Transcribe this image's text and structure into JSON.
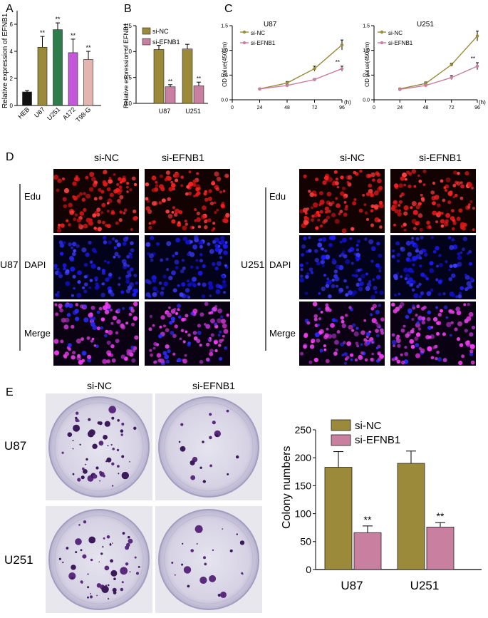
{
  "panel_letters": {
    "a": "A",
    "b": "B",
    "c": "C",
    "d": "D",
    "e": "E"
  },
  "colors": {
    "hebBlack": "#111111",
    "olive": "#9a8a3a",
    "green": "#2e7d4a",
    "magenta": "#c357d8",
    "pinkBeige": "#e3b4b0",
    "siNC": "#9a8a3a",
    "siEFNB1": "#c97fa0",
    "dish": "#c9c6d8"
  },
  "chart_data": [
    {
      "id": "A",
      "type": "bar",
      "title": "",
      "ylabel": "Relative expression of EFNB1",
      "categories": [
        "HEB",
        "U87",
        "U251",
        "A172",
        "T98-G"
      ],
      "values": [
        1.0,
        4.3,
        5.6,
        3.9,
        3.4
      ],
      "errors": [
        0.1,
        0.8,
        0.5,
        1.0,
        0.6
      ],
      "annotations": [
        "",
        "**",
        "**",
        "**",
        "**"
      ],
      "ylim": [
        0,
        7
      ],
      "yticks": [
        0,
        2,
        4,
        6
      ]
    },
    {
      "id": "B",
      "type": "bar",
      "ylabel": "Relative expression of EFNB1",
      "categories": [
        "U87",
        "U251"
      ],
      "series": [
        {
          "name": "si-NC",
          "values": [
            1.04,
            1.05
          ],
          "errors": [
            0.08,
            0.09
          ]
        },
        {
          "name": "si-EFNB1",
          "values": [
            0.32,
            0.34
          ],
          "errors": [
            0.04,
            0.07
          ]
        }
      ],
      "annotations": [
        "**",
        "**"
      ],
      "ylim": [
        0,
        1.5
      ],
      "yticks": [
        "0.0",
        "0.5",
        "1.0",
        "1.5"
      ]
    },
    {
      "id": "C1",
      "type": "line",
      "title": "U87",
      "ylabel": "OD value(450nm)",
      "xunit": "(h)",
      "x": [
        24,
        48,
        72,
        96
      ],
      "series": [
        {
          "name": "si-NC",
          "values": [
            0.22,
            0.34,
            0.63,
            1.11
          ],
          "errors": [
            0.01,
            0.03,
            0.05,
            0.1
          ]
        },
        {
          "name": "si-EFNB1",
          "values": [
            0.22,
            0.29,
            0.41,
            0.63
          ],
          "errors": [
            0.01,
            0.02,
            0.02,
            0.05
          ]
        }
      ],
      "annotation": "**",
      "xlim": [
        0,
        96
      ],
      "xticks": [
        "0",
        "24",
        "48",
        "72",
        "96"
      ],
      "ylim": [
        0,
        1.5
      ],
      "yticks": [
        "0.0",
        "0.5",
        "1.0",
        "1.5"
      ]
    },
    {
      "id": "C2",
      "type": "line",
      "title": "U251",
      "ylabel": "OD value(450nm)",
      "xunit": "(h)",
      "x": [
        24,
        48,
        72,
        96
      ],
      "series": [
        {
          "name": "si-NC",
          "values": [
            0.22,
            0.33,
            0.71,
            1.29
          ],
          "errors": [
            0.01,
            0.03,
            0.03,
            0.1
          ]
        },
        {
          "name": "si-EFNB1",
          "values": [
            0.21,
            0.29,
            0.45,
            0.68
          ],
          "errors": [
            0.01,
            0.02,
            0.04,
            0.07
          ]
        }
      ],
      "annotation": "**",
      "xlim": [
        0,
        96
      ],
      "xticks": [
        "0",
        "24",
        "48",
        "72",
        "96"
      ],
      "ylim": [
        0,
        1.5
      ],
      "yticks": [
        "0.0",
        "0.5",
        "1.0",
        "1.5"
      ]
    },
    {
      "id": "E",
      "type": "bar",
      "ylabel": "Colony numbers",
      "categories": [
        "U87",
        "U251"
      ],
      "series": [
        {
          "name": "si-NC",
          "values": [
            183,
            190
          ],
          "errors": [
            28,
            22
          ]
        },
        {
          "name": "si-EFNB1",
          "values": [
            66,
            76
          ],
          "errors": [
            12,
            8
          ]
        }
      ],
      "annotations": [
        "**",
        "**"
      ],
      "ylim": [
        0,
        250
      ],
      "yticks": [
        "0",
        "50",
        "100",
        "150",
        "200",
        "250"
      ]
    }
  ],
  "panelD": {
    "columns": [
      "si-NC",
      "si-EFNB1"
    ],
    "groups": [
      {
        "cell": "U87",
        "rows": [
          "Edu",
          "DAPI",
          "Merge"
        ]
      },
      {
        "cell": "U251",
        "rows": [
          "Edu",
          "DAPI",
          "Merge"
        ]
      }
    ]
  },
  "panelE": {
    "columns": [
      "si-NC",
      "si-EFNB1"
    ],
    "rows": [
      "U87",
      "U251"
    ]
  }
}
